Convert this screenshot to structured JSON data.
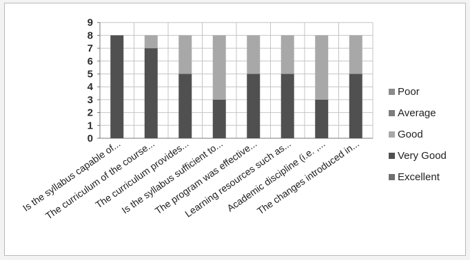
{
  "chart_data": {
    "type": "bar",
    "stacked": true,
    "categories": [
      "Is the syllabus capable of...",
      "The curriculum of the course...",
      "The curriculum provides...",
      "Is the syllabus sufficient to...",
      "The program was effective...",
      "Learning resources such as...",
      "Academic discipline (i.e. ,...",
      "The changes introduced in..."
    ],
    "series": [
      {
        "name": "Excellent",
        "color": "#6f6f6f",
        "values": [
          0,
          0,
          0,
          0,
          0,
          0,
          0,
          0
        ]
      },
      {
        "name": "Very Good",
        "color": "#505050",
        "values": [
          8,
          7,
          5,
          3,
          5,
          5,
          3,
          5
        ]
      },
      {
        "name": "Good",
        "color": "#a8a8a8",
        "values": [
          0,
          1,
          3,
          5,
          3,
          3,
          5,
          3
        ]
      },
      {
        "name": "Average",
        "color": "#7d7d7d",
        "values": [
          0,
          0,
          0,
          0,
          0,
          0,
          0,
          0
        ]
      },
      {
        "name": "Poor",
        "color": "#8a8a8a",
        "values": [
          0,
          0,
          0,
          0,
          0,
          0,
          0,
          0
        ]
      }
    ],
    "legend_order": [
      "Poor",
      "Average",
      "Good",
      "Very Good",
      "Excellent"
    ],
    "yticks": [
      0,
      1,
      2,
      3,
      4,
      5,
      6,
      7,
      8,
      9
    ],
    "ylim": [
      0,
      9
    ],
    "grid": true,
    "legend_position": "right"
  }
}
